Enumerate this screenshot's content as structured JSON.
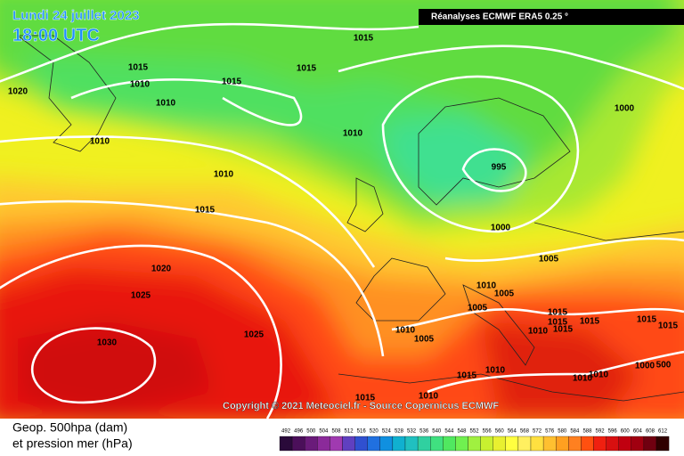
{
  "header": {
    "date": "Lundi 24 juillet 2023",
    "time": "18:00 UTC",
    "source": "Réanalyses ECMWF ERA5 0.25 °"
  },
  "footer": {
    "copyright": "Copyright © 2021 Meteociel.fr - Source Copernicus ECMWF"
  },
  "legend": {
    "title_line1": "Geop. 500hpa (dam)",
    "title_line2": "et pression mer (hPa)",
    "ticks": [
      492,
      496,
      500,
      504,
      508,
      512,
      516,
      520,
      524,
      528,
      532,
      536,
      540,
      544,
      548,
      552,
      556,
      560,
      564,
      568,
      572,
      576,
      580,
      584,
      588,
      592,
      596,
      600,
      604,
      608,
      612
    ],
    "colors": [
      "#2a0a3a",
      "#4b0f5a",
      "#6a1b7a",
      "#8b2a9a",
      "#a03ab0",
      "#6040c0",
      "#3050d0",
      "#2070e0",
      "#1090e0",
      "#10b0d0",
      "#20c0c0",
      "#30d0a0",
      "#40e080",
      "#50e860",
      "#70f050",
      "#a0f040",
      "#c8f030",
      "#e8f030",
      "#ffff40",
      "#fff060",
      "#ffe040",
      "#ffc030",
      "#ffa020",
      "#ff8020",
      "#ff5010",
      "#f02010",
      "#d81010",
      "#c00010",
      "#a00010",
      "#700010",
      "#300000"
    ]
  },
  "isobar_labels": [
    "1015",
    "1015",
    "1015",
    "1010",
    "1015",
    "1020",
    "1010",
    "1010",
    "1010",
    "1000",
    "995",
    "1010",
    "1015",
    "1000",
    "1005",
    "1020",
    "1025",
    "1010",
    "1005",
    "1005",
    "1015",
    "1015",
    "1015",
    "1015",
    "1015",
    "1030",
    "1025",
    "1010",
    "1005",
    "1010",
    "1015",
    "1015",
    "1010",
    "1010",
    "1010",
    "1000",
    "500",
    "1015",
    "1010"
  ]
}
